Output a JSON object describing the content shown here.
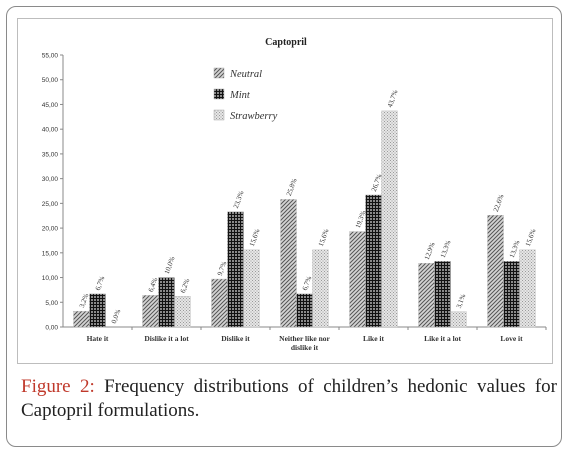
{
  "chart_data": {
    "type": "bar",
    "title": "Captopril",
    "categories": [
      "Hate it",
      "Dislike it a lot",
      "Dislike it",
      "Neither like nor dislike it",
      "Like it",
      "Like it a lot",
      "Love it"
    ],
    "series": [
      {
        "name": "Neutral",
        "values": [
          3.2,
          6.4,
          9.7,
          25.8,
          19.3,
          12.9,
          22.6
        ],
        "labels": [
          "3,2%",
          "6,4%",
          "9,7%",
          "25,8%",
          "19,3%",
          "12,9%",
          "22,6%"
        ],
        "pattern": "diagonal"
      },
      {
        "name": "Mint",
        "values": [
          6.7,
          10.0,
          23.3,
          6.7,
          26.7,
          13.3,
          13.3
        ],
        "labels": [
          "6,7%",
          "10,0%",
          "23,3%",
          "6,7%",
          "26,7%",
          "13,3%",
          "13,3%"
        ],
        "pattern": "grid"
      },
      {
        "name": "Strawberry",
        "values": [
          0.0,
          6.2,
          15.6,
          15.6,
          43.7,
          3.1,
          15.6
        ],
        "labels": [
          "0,0%",
          "6,2%",
          "15,6%",
          "15,6%",
          "43,7%",
          "3,1%",
          "15,6%"
        ],
        "pattern": "dots"
      }
    ],
    "ylim": [
      0,
      55
    ],
    "yticks": [
      "0,00",
      "5,00",
      "10,00",
      "15,00",
      "20,00",
      "25,00",
      "30,00",
      "35,00",
      "40,00",
      "45,00",
      "50,00",
      "55,00"
    ],
    "legend_position": "top-center",
    "grid": false
  },
  "caption": {
    "label": "Figure 2:",
    "text": "Frequency distributions of children’s hedonic values for Captopril formulations."
  },
  "colors": {
    "neutral": "#8c8c8c",
    "mint": "#3a3a3a",
    "strawberry": "#c8c8c8",
    "caption_label": "#c0392b"
  }
}
